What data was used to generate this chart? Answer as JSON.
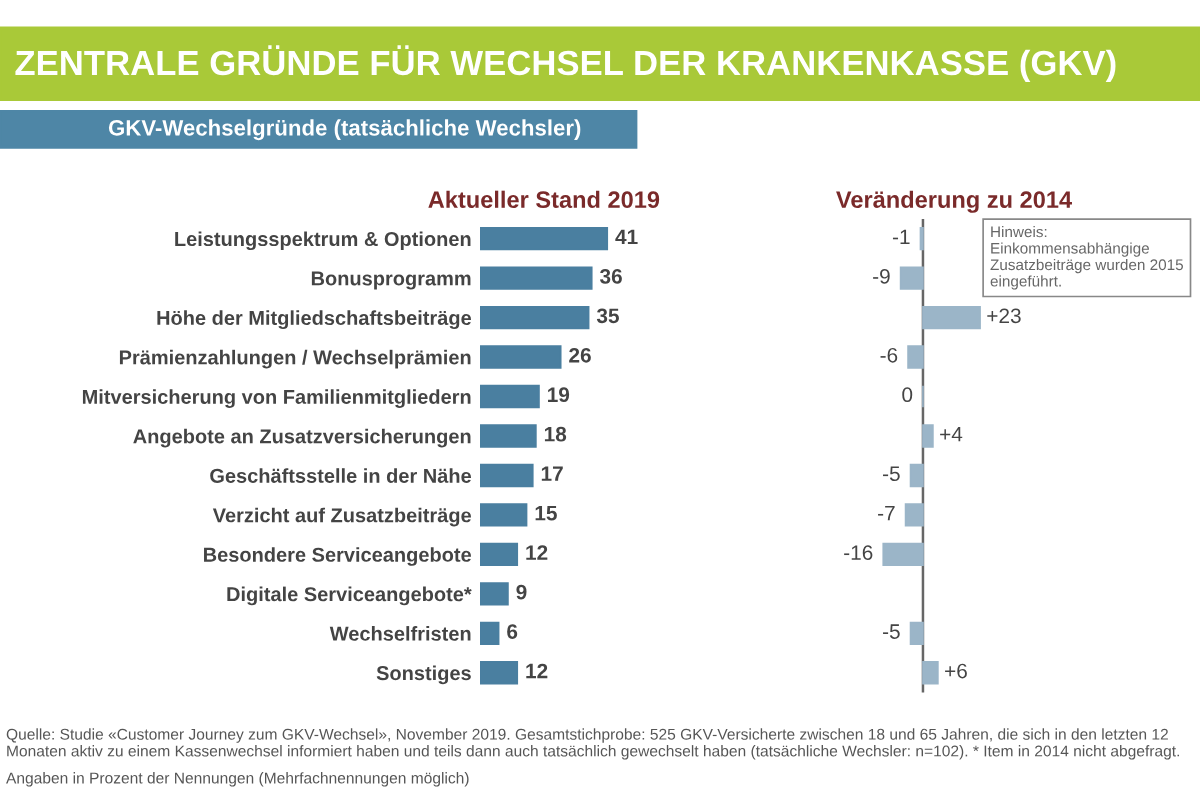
{
  "chart_data": [
    {
      "type": "bar",
      "orientation": "horizontal",
      "title": "ZENTRALE GRÜNDE FÜR WECHSEL DER KRANKENKASSE (GKV)",
      "subtitle": "GKV-Wechselgründe (tatsächliche Wechsler)",
      "xlabel": "Aktueller Stand 2019",
      "categories": [
        "Leistungsspektrum & Optionen",
        "Bonusprogramm",
        "Höhe der Mitgliedschaftsbeiträge",
        "Prämienzahlungen / Wechselprämien",
        "Mitversicherung von Familienmitgliedern",
        "Angebote an Zusatzversicherungen",
        "Geschäftsstelle in der Nähe",
        "Verzicht auf Zusatzbeiträge",
        "Besondere Serviceangebote",
        "Digitale Serviceangebote*",
        "Wechselfristen",
        "Sonstiges"
      ],
      "values": [
        41,
        36,
        35,
        26,
        19,
        18,
        17,
        15,
        12,
        9,
        6,
        12
      ],
      "color": "#4a7fa0",
      "data_labels": true,
      "tick_labels": "y",
      "annotations": [
        "Quelle: Studie «Customer Journey zum GKV-Wechsel», November 2019. Gesamtstichprobe: 525 GKV-Versicherte zwischen 18 und 65 Jahren, die sich in den letzten 12 Monaten aktiv zu einem Kassenwechsel informiert haben und teils dann auch tatsächlich gewechselt haben (tatsächliche Wechsler: n=102). * Item in 2014 nicht abgefragt.",
        "Angaben in Prozent der Nennungen (Mehrfachnennungen möglich)"
      ]
    },
    {
      "type": "bar",
      "orientation": "horizontal",
      "xlabel": "Veränderung zu 2014",
      "categories": [
        null,
        null,
        null,
        null,
        null,
        null,
        null,
        null,
        null,
        null,
        null,
        null
      ],
      "values": [
        -1,
        -9,
        23,
        -6,
        0,
        4,
        -5,
        -7,
        -16,
        null,
        -5,
        6
      ],
      "color": "#9bb5c8",
      "value_labels": [
        "-1",
        "-9",
        "+23",
        "-6",
        "0",
        "+4",
        "-5",
        "-7",
        "-16",
        null,
        "-5",
        "+6"
      ],
      "tick_labels": false,
      "annotations": [
        "Hinweis: Einkommensabhängige Zusatzbeiträge wurden 2015 eingeführt."
      ]
    }
  ]
}
